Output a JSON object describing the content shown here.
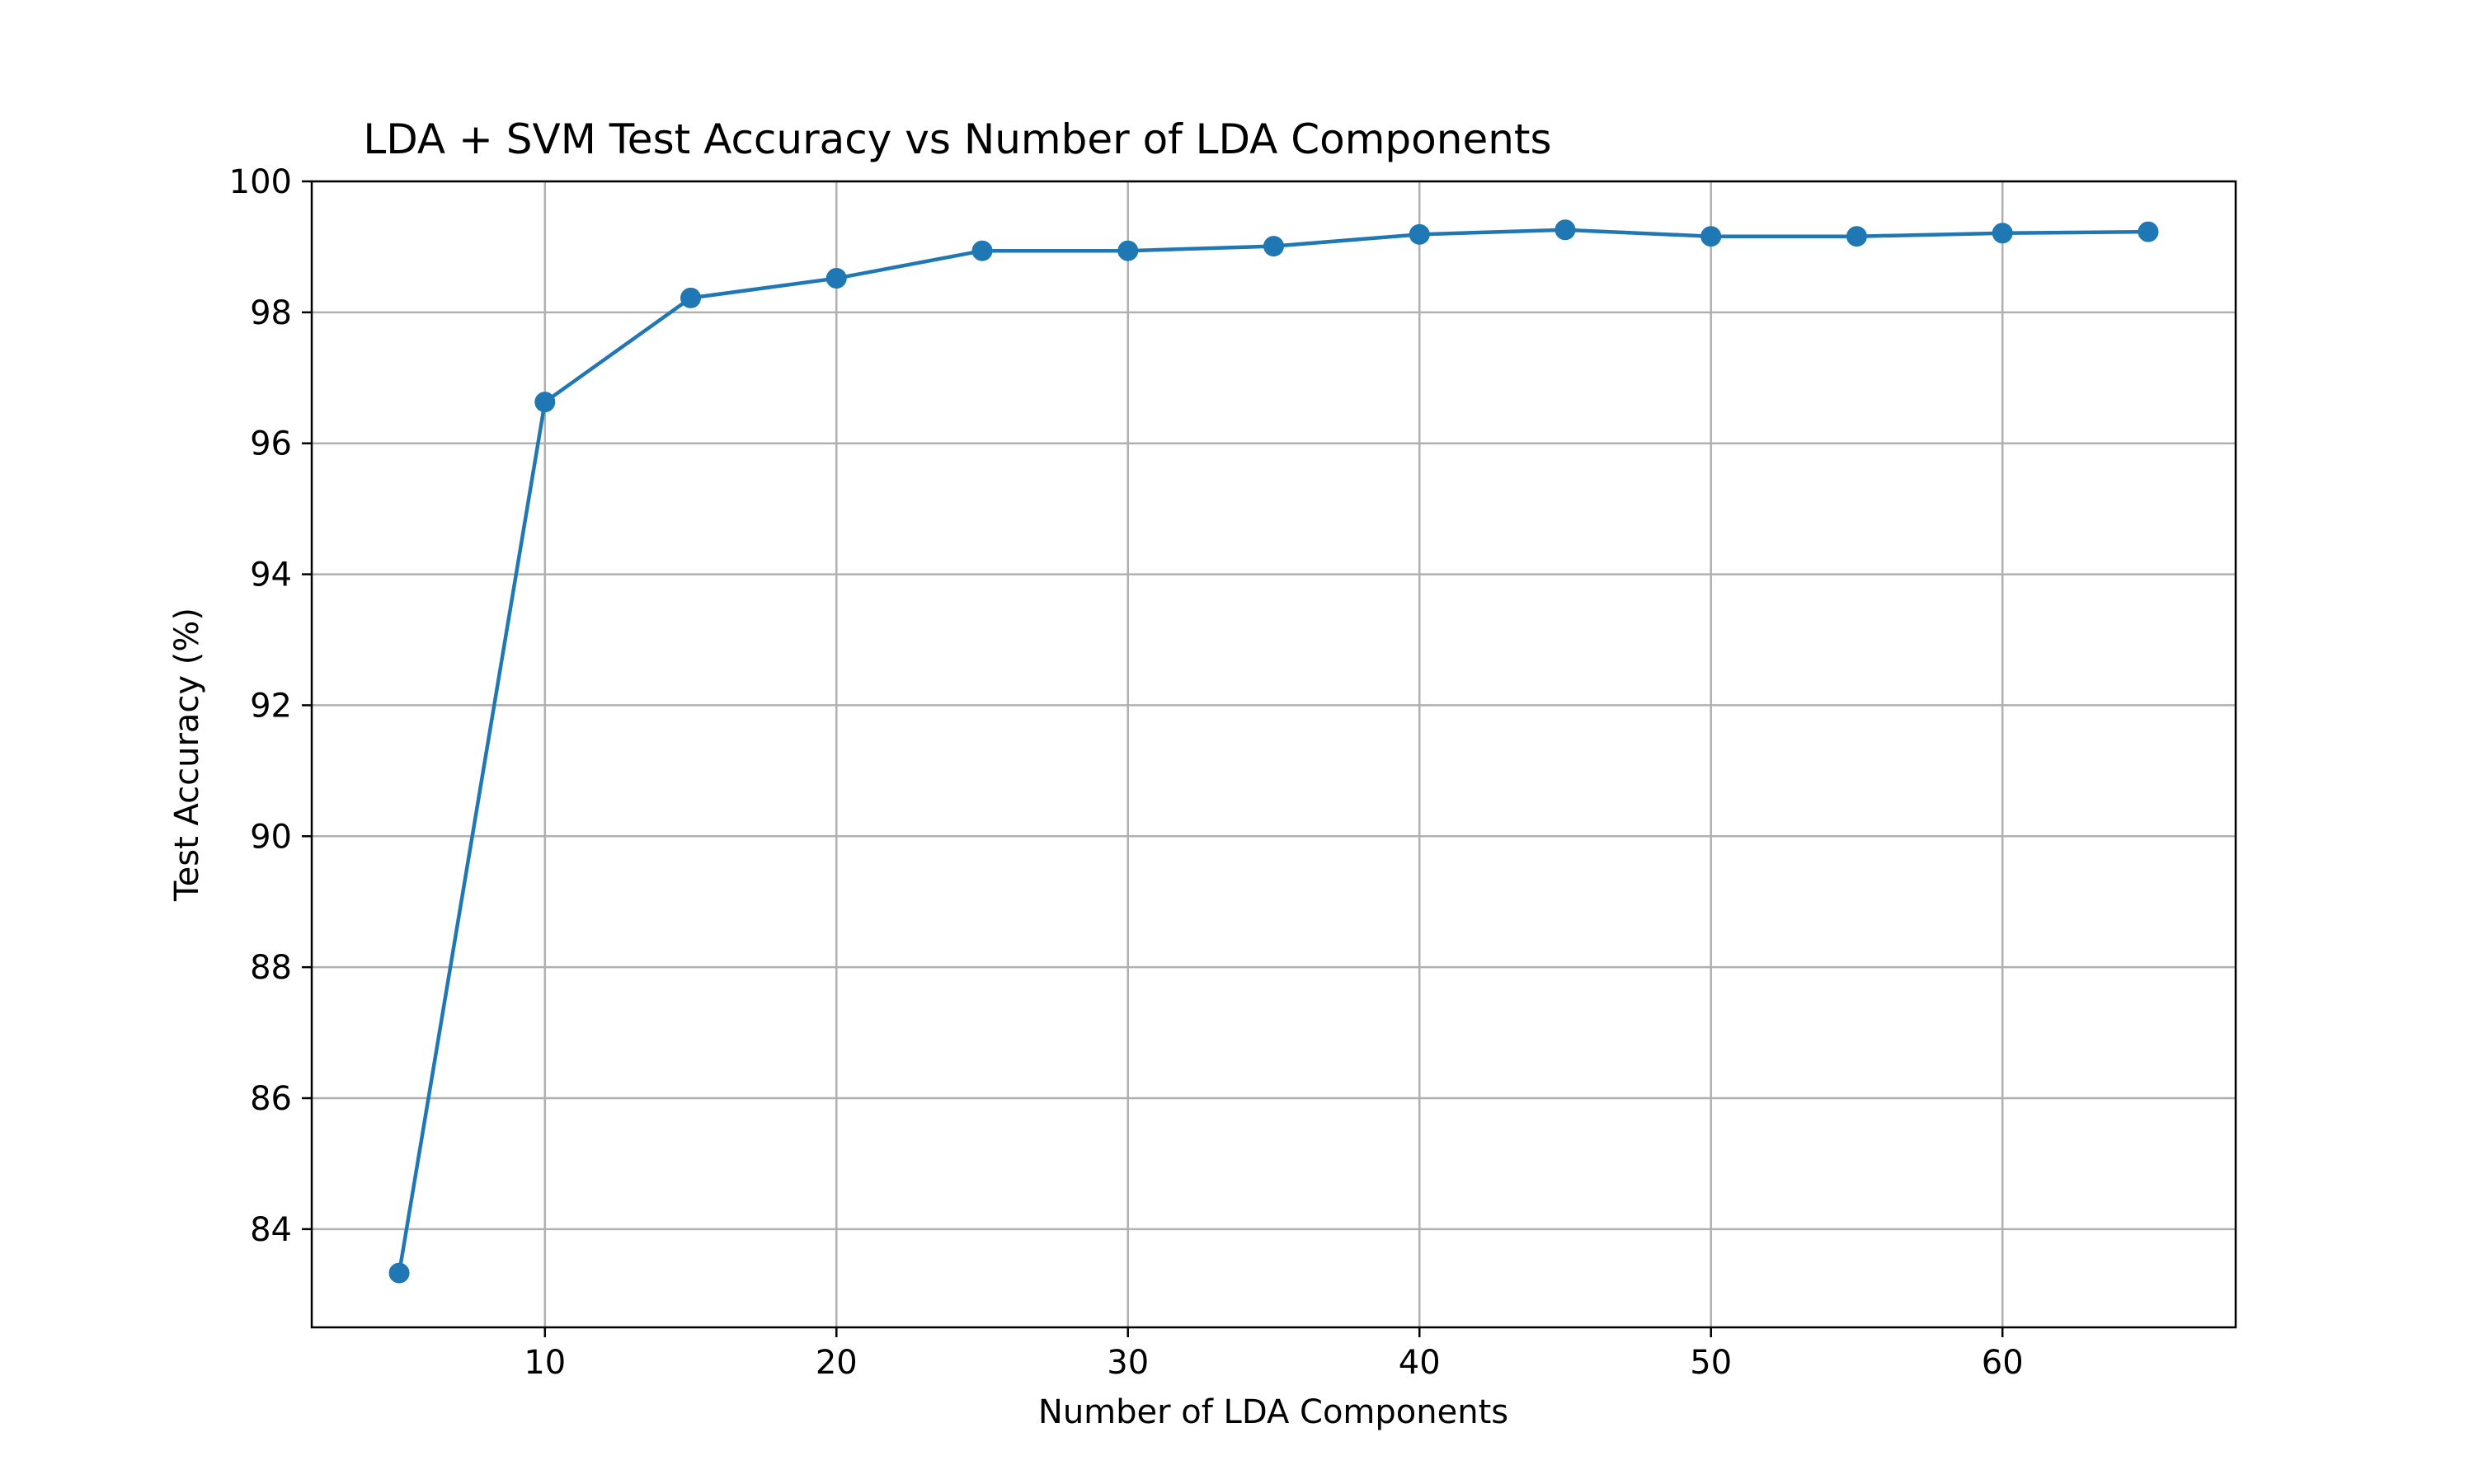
{
  "chart_data": {
    "type": "line",
    "title": "LDA + SVM Test Accuracy vs Number of LDA Components",
    "xlabel": "Number of LDA Components",
    "ylabel": "Test Accuracy (%)",
    "x": [
      5,
      10,
      15,
      20,
      25,
      30,
      35,
      40,
      45,
      50,
      55,
      60,
      65
    ],
    "series": [
      {
        "values": [
          83.33,
          96.63,
          98.22,
          98.52,
          98.94,
          98.94,
          99.01,
          99.19,
          99.26,
          99.16,
          99.16,
          99.21,
          99.23
        ]
      }
    ],
    "xlim": [
      2,
      68
    ],
    "ylim": [
      82.5,
      100
    ],
    "xticks": [
      10,
      20,
      30,
      40,
      50,
      60
    ],
    "yticks": [
      84,
      86,
      88,
      90,
      92,
      94,
      96,
      98,
      100
    ],
    "grid": true,
    "legend": "none",
    "line_color": "#1f77b4",
    "marker": "circle"
  }
}
